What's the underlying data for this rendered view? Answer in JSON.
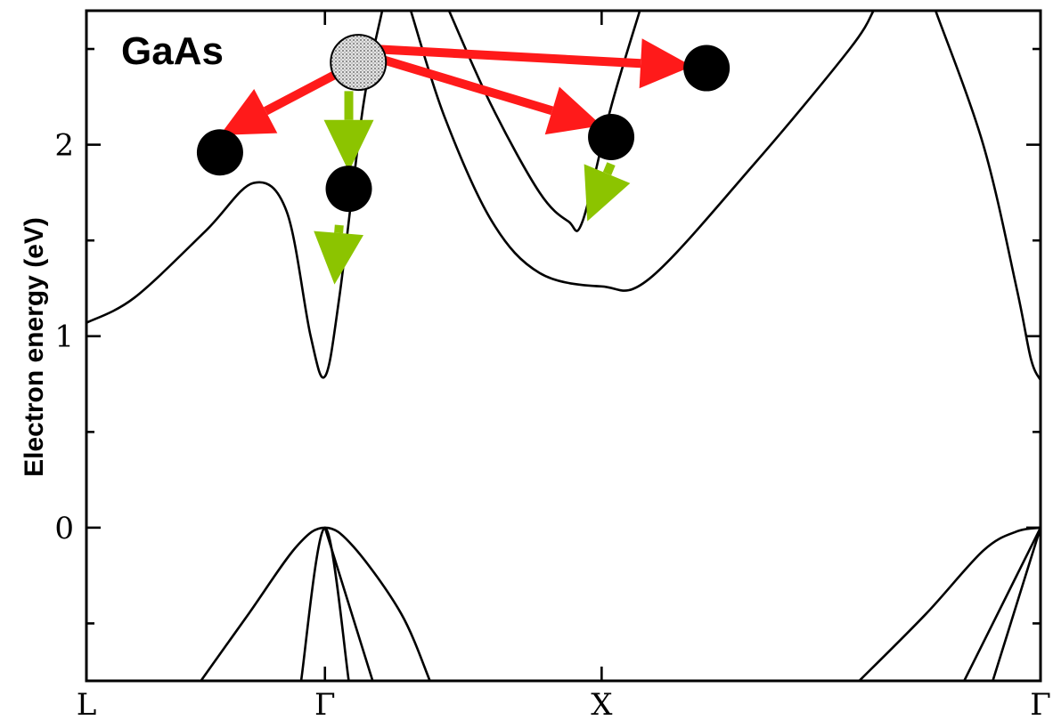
{
  "chart_data": {
    "type": "line",
    "title": "",
    "material_label": "GaAs",
    "xlabel": "",
    "ylabel": "Electron energy (eV)",
    "x_ticks": [
      {
        "label": "L",
        "pos": 0
      },
      {
        "label": "Γ",
        "pos": 0.5
      },
      {
        "label": "X",
        "pos": 1.08
      },
      {
        "label": "Γ",
        "pos": 2.0
      }
    ],
    "y_ticks": [
      {
        "label": "0",
        "value": 0
      },
      {
        "label": "1",
        "value": 1
      },
      {
        "label": "2",
        "value": 2
      }
    ],
    "xlim": [
      0,
      2.0
    ],
    "ylim": [
      -0.8,
      2.7
    ],
    "grid": false,
    "series": [
      {
        "points": [
          [
            0,
            1.07
          ],
          [
            0.1,
            1.2
          ],
          [
            0.25,
            1.55
          ],
          [
            0.35,
            1.8
          ],
          [
            0.42,
            1.65
          ],
          [
            0.47,
            1.0
          ],
          [
            0.5,
            0.79
          ],
          [
            0.53,
            1.2
          ],
          [
            0.58,
            2.2
          ],
          [
            0.62,
            2.7
          ]
        ]
      },
      {
        "points": [
          [
            0.76,
            2.7
          ],
          [
            0.85,
            2.2
          ],
          [
            0.95,
            1.75
          ],
          [
            1.01,
            1.6
          ],
          [
            1.04,
            1.6
          ],
          [
            1.1,
            2.2
          ],
          [
            1.16,
            2.7
          ]
        ]
      },
      {
        "points": [
          [
            0.68,
            2.7
          ],
          [
            0.75,
            2.15
          ],
          [
            0.85,
            1.6
          ],
          [
            0.95,
            1.33
          ],
          [
            1.08,
            1.26
          ],
          [
            1.18,
            1.3
          ],
          [
            1.4,
            1.9
          ],
          [
            1.6,
            2.5
          ],
          [
            1.65,
            2.7
          ]
        ]
      },
      {
        "points": [
          [
            1.78,
            2.7
          ],
          [
            1.88,
            2.0
          ],
          [
            1.95,
            1.25
          ],
          [
            1.98,
            0.88
          ],
          [
            2.0,
            0.77
          ]
        ]
      },
      {
        "points": [
          [
            0.24,
            -0.8
          ],
          [
            0.34,
            -0.45
          ],
          [
            0.44,
            -0.1
          ],
          [
            0.5,
            0.0
          ],
          [
            0.56,
            -0.1
          ],
          [
            0.66,
            -0.45
          ],
          [
            0.72,
            -0.8
          ]
        ]
      },
      {
        "points": [
          [
            0.45,
            -0.8
          ],
          [
            0.5,
            0.0
          ],
          [
            0.55,
            -0.8
          ]
        ]
      },
      {
        "points": [
          [
            0.5,
            0.0
          ],
          [
            0.6,
            -0.8
          ]
        ]
      },
      {
        "points": [
          [
            1.62,
            -0.8
          ],
          [
            1.76,
            -0.45
          ],
          [
            1.88,
            -0.12
          ],
          [
            1.95,
            -0.02
          ],
          [
            2.0,
            0.0
          ]
        ]
      },
      {
        "points": [
          [
            1.84,
            -0.8
          ],
          [
            1.92,
            -0.4
          ],
          [
            2.0,
            0.0
          ]
        ]
      },
      {
        "points": [
          [
            1.9,
            -0.8
          ],
          [
            1.95,
            -0.4
          ],
          [
            2.0,
            0.0
          ]
        ]
      }
    ],
    "carriers": {
      "initial": {
        "x": 0.57,
        "y": 2.43,
        "style": "hatched"
      },
      "final": [
        {
          "x": 0.28,
          "y": 1.96
        },
        {
          "x": 0.55,
          "y": 1.77
        },
        {
          "x": 1.1,
          "y": 2.04
        },
        {
          "x": 1.3,
          "y": 2.4
        }
      ]
    },
    "scattering_arrows": [
      {
        "from": [
          0.57,
          2.43
        ],
        "to": [
          0.28,
          2.05
        ],
        "color": "#ff1a1a"
      },
      {
        "from": [
          0.6,
          2.46
        ],
        "to": [
          1.08,
          2.1
        ],
        "color": "#ff1a1a"
      },
      {
        "from": [
          0.6,
          2.5
        ],
        "to": [
          1.27,
          2.41
        ],
        "color": "#ff1a1a"
      },
      {
        "from": [
          0.55,
          2.28
        ],
        "to": [
          0.55,
          1.86
        ],
        "color": "#8cc400"
      },
      {
        "from": [
          0.53,
          1.58
        ],
        "to": [
          0.52,
          1.27
        ],
        "color": "#8cc400"
      },
      {
        "from": [
          1.1,
          1.9
        ],
        "to": [
          1.05,
          1.6
        ],
        "color": "#8cc400"
      }
    ],
    "colors": {
      "axis": "#000000",
      "background": "#ffffff",
      "arrow_red": "#ff1a1a",
      "arrow_green": "#8cc400",
      "carrier": "#000000"
    }
  }
}
